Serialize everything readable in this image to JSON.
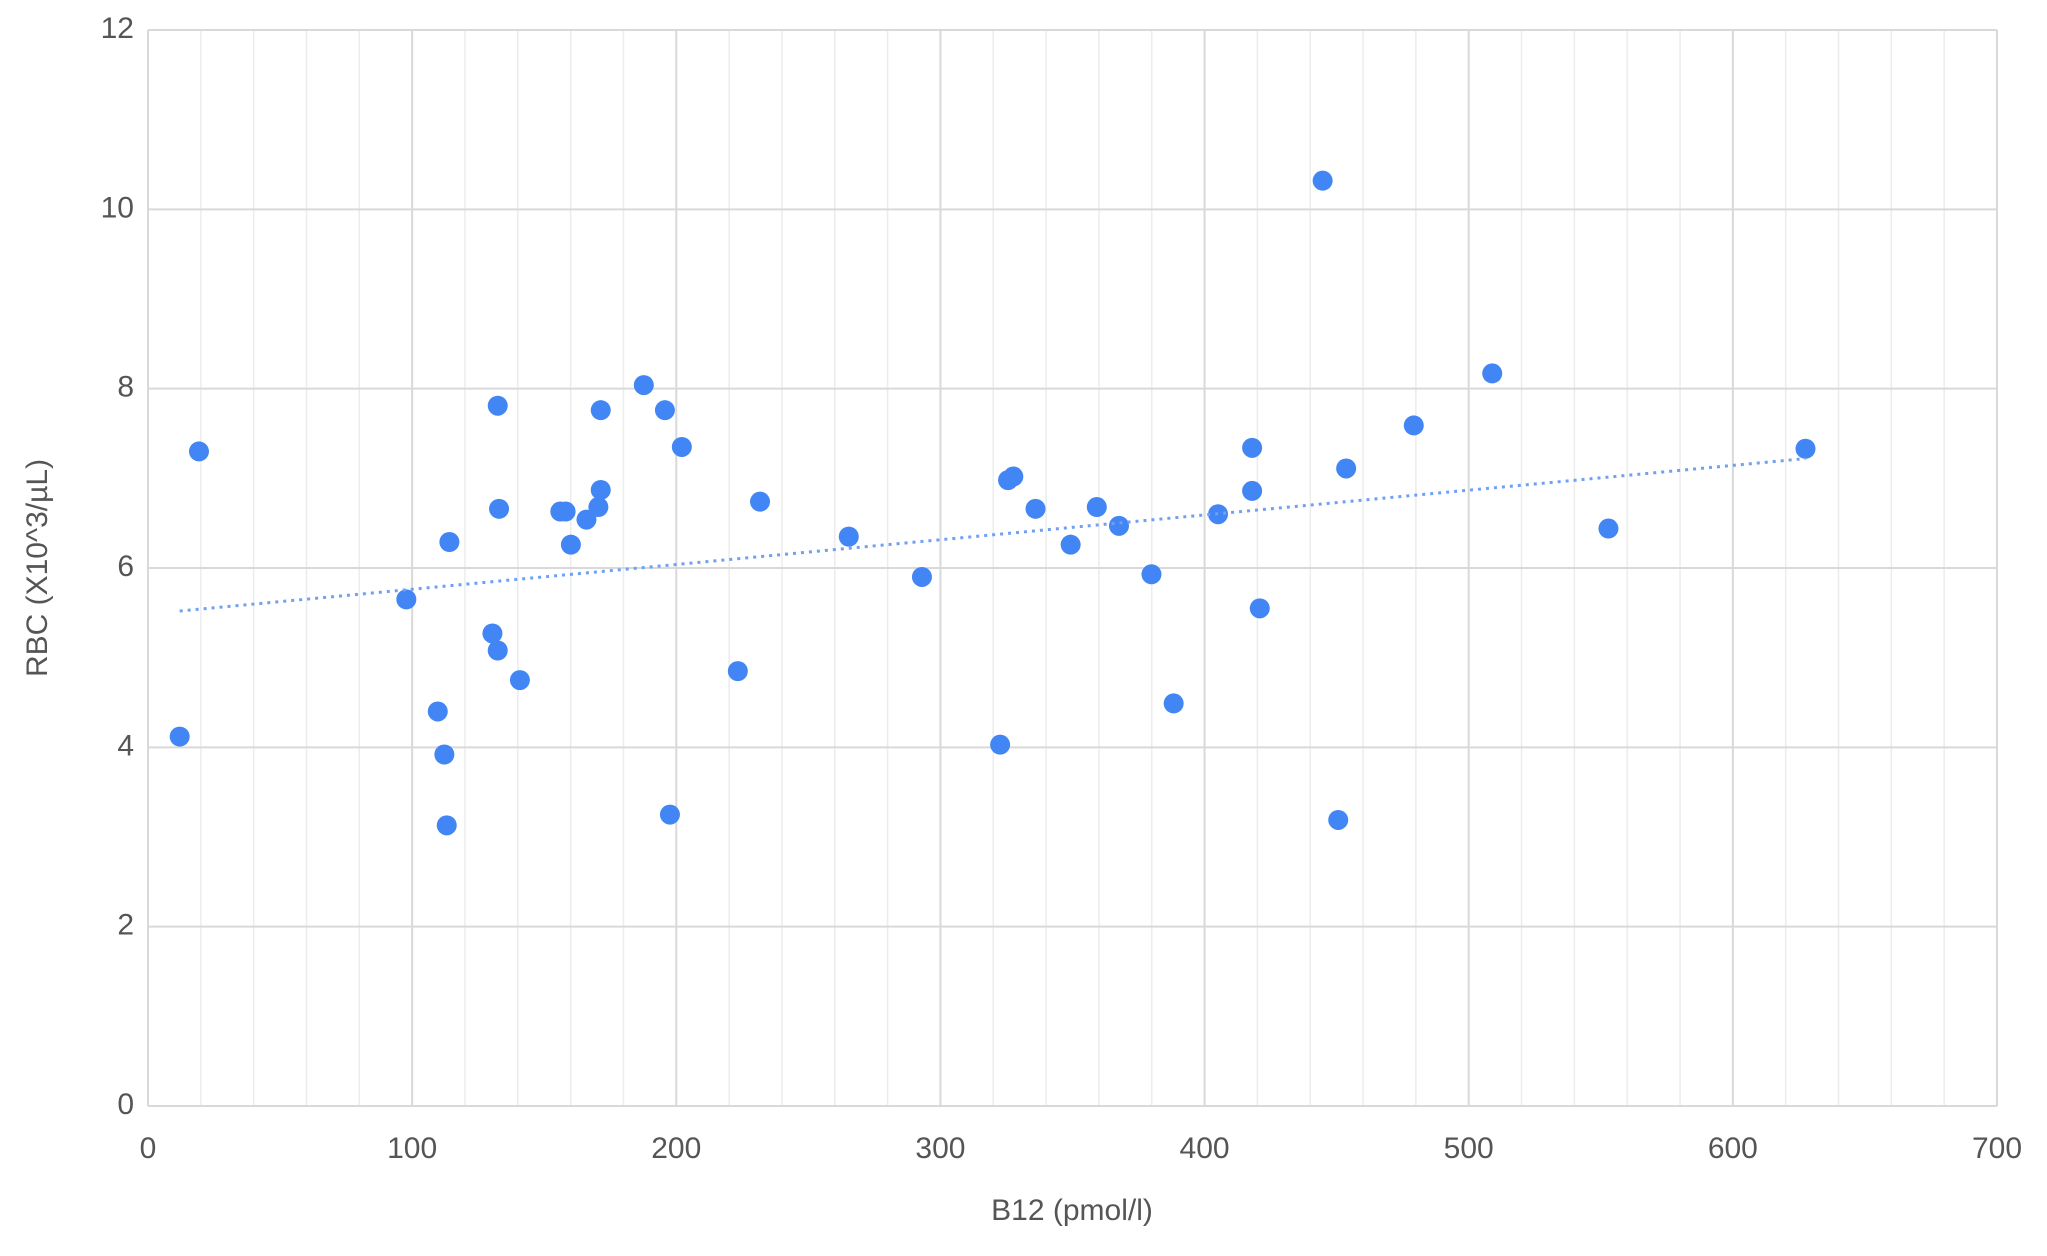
{
  "chart_data": {
    "type": "scatter",
    "x_label": "B12 (pmol/l)",
    "y_label": "RBC (X10^3/µL)",
    "xlim": [
      0,
      700
    ],
    "xticks": [
      0,
      100,
      200,
      300,
      400,
      500,
      600,
      700
    ],
    "ylim": [
      0,
      12
    ],
    "yticks": [
      0,
      2,
      4,
      6,
      8,
      10,
      12
    ],
    "grid": true,
    "x_minor_step": 20,
    "color": "#4285f4",
    "x": [
      12,
      19.3,
      97.8,
      109.7,
      112.2,
      113.1,
      114.1,
      130.4,
      132.4,
      132.4,
      132.9,
      140.8,
      156.1,
      158.1,
      160.1,
      166,
      170.5,
      171.4,
      171.4,
      187.7,
      195.7,
      197.6,
      202.1,
      223.3,
      231.7,
      265.3,
      293,
      322.6,
      325.6,
      327.6,
      336,
      349.3,
      359.2,
      367.6,
      379.9,
      388.3,
      405.1,
      418,
      418,
      420.9,
      444.7,
      450.6,
      453.6,
      479.2,
      508.9,
      552.9,
      627.5
    ],
    "values": [
      4.12,
      7.3,
      5.65,
      4.4,
      3.92,
      3.13,
      6.29,
      5.27,
      7.81,
      5.08,
      6.66,
      4.75,
      6.63,
      6.63,
      6.26,
      6.54,
      6.68,
      6.87,
      7.76,
      8.04,
      7.76,
      3.25,
      7.35,
      4.85,
      6.74,
      6.35,
      5.9,
      4.03,
      6.98,
      7.02,
      6.66,
      6.26,
      6.68,
      6.47,
      5.93,
      4.49,
      6.6,
      6.86,
      7.34,
      5.55,
      10.32,
      3.19,
      7.11,
      7.59,
      8.17,
      6.44,
      7.33
    ],
    "trendline": {
      "x": [
        12,
        627.5
      ],
      "values": [
        5.52,
        7.22
      ],
      "color": "#6fa0f2"
    }
  }
}
